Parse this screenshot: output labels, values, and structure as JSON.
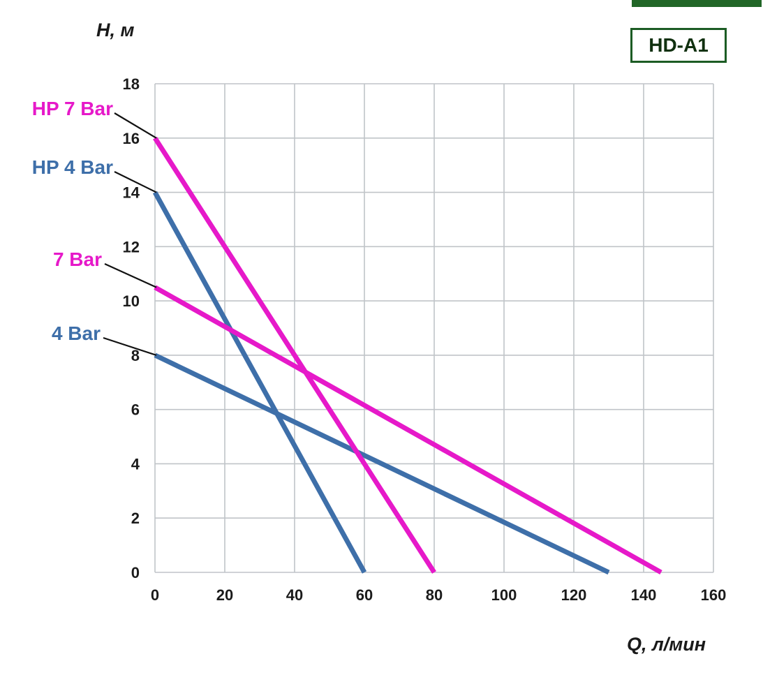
{
  "page": {
    "model_badge": "HD-A1"
  },
  "chart_data": {
    "type": "line",
    "title": "HD-A1",
    "xlabel": "Q, л/мин",
    "ylabel": "H, м",
    "xlim": [
      0,
      160
    ],
    "ylim": [
      0,
      18
    ],
    "x_tick_step": 20,
    "y_tick_step": 2,
    "grid": true,
    "legend_position": "left-labels-with-leader-lines",
    "series": [
      {
        "name": "HP 4 Bar",
        "color": "#3e6fa9",
        "points": [
          [
            0,
            14
          ],
          [
            60,
            0
          ]
        ]
      },
      {
        "name": "4 Bar",
        "color": "#3e6fa9",
        "points": [
          [
            0,
            8
          ],
          [
            130,
            0
          ]
        ]
      },
      {
        "name": "HP 7 Bar",
        "color": "#e619c9",
        "points": [
          [
            0,
            16
          ],
          [
            80,
            0
          ]
        ]
      },
      {
        "name": "7 Bar",
        "color": "#e619c9",
        "points": [
          [
            0,
            10.5
          ],
          [
            145,
            0
          ]
        ]
      }
    ]
  }
}
